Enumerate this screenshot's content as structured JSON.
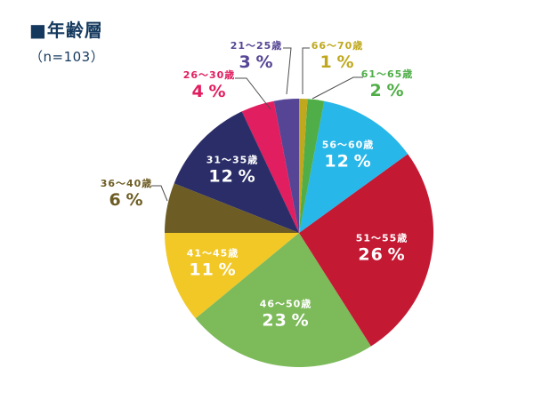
{
  "page": {
    "background_color": "#ffffff"
  },
  "header": {
    "title": "■年齢層",
    "sample_size": "（n=103）",
    "color": "#15395e"
  },
  "chart_data": {
    "type": "pie",
    "title": "年齢層",
    "sample_size_label": "（n=103）",
    "n": 103,
    "value_unit": "%",
    "start_angle_deg": 0,
    "direction": "counter-clockwise-from-top",
    "legend_position": "none",
    "leader_line_color": "#4d4d4d",
    "inside_label_color": "#ffffff",
    "segments": [
      {
        "label": "21～25歳",
        "value": 3,
        "color": "#564595",
        "label_placement": "outside"
      },
      {
        "label": "26～30歳",
        "value": 4,
        "color": "#e11e60",
        "label_placement": "outside"
      },
      {
        "label": "31～35歳",
        "value": 12,
        "color": "#2a2d68",
        "label_placement": "inside"
      },
      {
        "label": "36～40歳",
        "value": 6,
        "color": "#6d5c23",
        "label_placement": "outside"
      },
      {
        "label": "41～45歳",
        "value": 11,
        "color": "#f2c827",
        "label_placement": "inside"
      },
      {
        "label": "46～50歳",
        "value": 23,
        "color": "#7dba5a",
        "label_placement": "inside"
      },
      {
        "label": "51～55歳",
        "value": 26,
        "color": "#c41933",
        "label_placement": "inside"
      },
      {
        "label": "56～60歳",
        "value": 12,
        "color": "#28b7e9",
        "label_placement": "inside"
      },
      {
        "label": "61～65歳",
        "value": 2,
        "color": "#4fae47",
        "label_placement": "outside"
      },
      {
        "label": "66～70歳",
        "value": 1,
        "color": "#bfa81d",
        "label_placement": "outside"
      }
    ]
  }
}
